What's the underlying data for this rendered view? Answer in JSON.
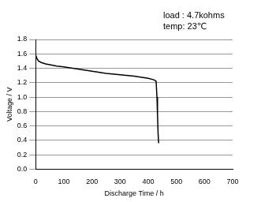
{
  "chart_data": {
    "type": "line",
    "annotations": [
      "load : 4.7kohms",
      "temp: 23℃"
    ],
    "x_label": "Discharge Time / h",
    "y_label": "Voltage / V",
    "series": [
      {
        "name": "discharge",
        "color": "#000000",
        "x": [
          0,
          5,
          10,
          20,
          35,
          50,
          75,
          100,
          150,
          200,
          250,
          300,
          350,
          400,
          420,
          428,
          431,
          433,
          435,
          437
        ],
        "values": [
          1.58,
          1.53,
          1.5,
          1.48,
          1.46,
          1.45,
          1.43,
          1.42,
          1.39,
          1.36,
          1.33,
          1.31,
          1.29,
          1.26,
          1.24,
          1.22,
          1.0,
          0.75,
          0.5,
          0.36
        ]
      }
    ],
    "xlim": [
      0,
      700
    ],
    "xticks": [
      0,
      100,
      200,
      300,
      400,
      500,
      600,
      700
    ],
    "ylim": [
      0,
      1.8
    ],
    "yticks": [
      {
        "value": 0,
        "label": "0.0"
      },
      0.2,
      0.4,
      0.6,
      0.8,
      {
        "value": 1,
        "label": "1.0"
      },
      1.2,
      1.4,
      1.6,
      1.8
    ],
    "grid": true
  }
}
